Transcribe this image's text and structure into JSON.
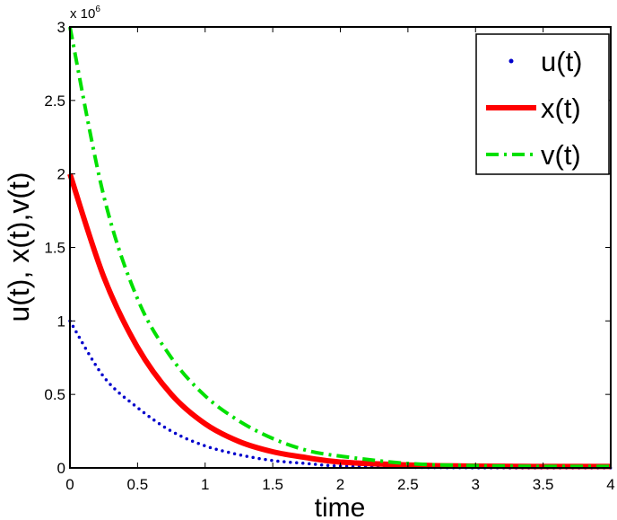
{
  "chart_data": {
    "type": "line",
    "title": "",
    "xlabel": "time",
    "ylabel": "u(t), x(t),v(t)",
    "y_multiplier_label": "x 10",
    "y_multiplier_exp": "6",
    "xlim": [
      0,
      4
    ],
    "ylim": [
      0,
      3
    ],
    "xticks": [
      "0",
      "0.5",
      "1",
      "1.5",
      "2",
      "2.5",
      "3",
      "3.5",
      "4"
    ],
    "yticks": [
      "0",
      "0.5",
      "1",
      "1.5",
      "2",
      "2.5",
      "3"
    ],
    "grid": false,
    "legend_position": "top-right",
    "x": [
      0,
      0.25,
      0.5,
      0.75,
      1,
      1.25,
      1.5,
      1.75,
      2,
      2.5,
      3,
      3.5,
      4
    ],
    "series": [
      {
        "name": "u(t)",
        "style": "dotted",
        "color": "#0000cc",
        "values": [
          1.0,
          0.62,
          0.41,
          0.25,
          0.15,
          0.09,
          0.05,
          0.03,
          0.012,
          0.004,
          0.001,
          0,
          0
        ]
      },
      {
        "name": "x(t)",
        "style": "solid",
        "color": "#ff0000",
        "values": [
          2.0,
          1.3,
          0.82,
          0.5,
          0.3,
          0.18,
          0.11,
          0.07,
          0.04,
          0.02,
          0.012,
          0.01,
          0.01
        ]
      },
      {
        "name": "v(t)",
        "style": "dash-dot",
        "color": "#00e000",
        "values": [
          3.0,
          1.85,
          1.15,
          0.75,
          0.49,
          0.32,
          0.2,
          0.12,
          0.08,
          0.03,
          0.015,
          0.01,
          0.01
        ]
      }
    ]
  }
}
